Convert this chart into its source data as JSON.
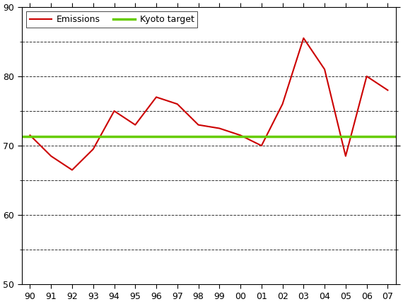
{
  "years": [
    1990,
    1991,
    1992,
    1993,
    1994,
    1995,
    1996,
    1997,
    1998,
    1999,
    2000,
    2001,
    2002,
    2003,
    2004,
    2005,
    2006,
    2007
  ],
  "emissions": [
    71.5,
    68.5,
    66.5,
    69.5,
    75.0,
    73.0,
    77.0,
    76.0,
    73.0,
    72.5,
    71.5,
    70.0,
    76.0,
    85.5,
    81.0,
    68.5,
    80.0,
    78.0
  ],
  "kyoto_target": 71.3,
  "emissions_color": "#cc0000",
  "kyoto_color": "#66cc00",
  "ylim": [
    50,
    90
  ],
  "yticks_major": [
    50,
    60,
    70,
    80,
    90
  ],
  "grid_color": "#000000",
  "legend_emissions": "Emissions",
  "legend_kyoto": "Kyoto target",
  "emissions_linewidth": 1.5,
  "kyoto_linewidth": 2.5,
  "tick_label_fontsize": 9,
  "legend_fontsize": 9,
  "spine_color": "#000000",
  "spine_linewidth": 0.8,
  "grid_linewidth": 0.7,
  "grid_alpha": 0.8
}
